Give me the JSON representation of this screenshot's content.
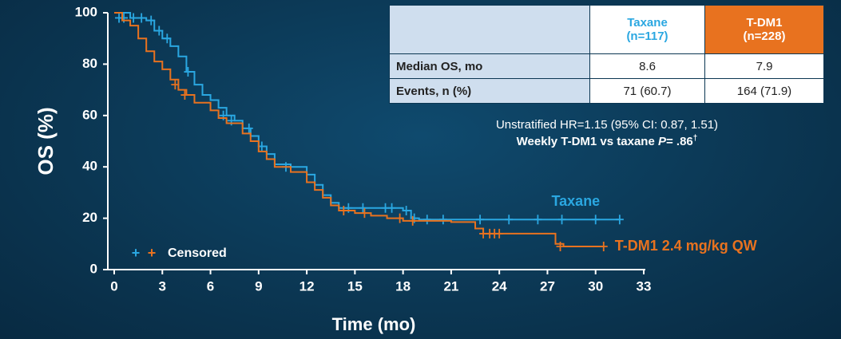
{
  "chart_data": {
    "type": "line",
    "step": true,
    "xlabel": "Time (mo)",
    "ylabel": "OS (%)",
    "xlim": [
      0,
      33
    ],
    "xticks": [
      0,
      3,
      6,
      9,
      12,
      15,
      18,
      21,
      24,
      27,
      30,
      33
    ],
    "ylim": [
      0,
      100
    ],
    "yticks": [
      0,
      20,
      40,
      60,
      80,
      100
    ],
    "series": [
      {
        "name": "Taxane",
        "color": "#2aa7e1",
        "x": [
          0,
          1,
          2,
          2.5,
          3,
          3.5,
          4,
          4.5,
          5,
          5.5,
          6,
          6.5,
          7,
          7.5,
          8,
          8.5,
          9,
          9.5,
          10,
          11,
          12,
          12.5,
          13,
          13.5,
          14,
          18,
          18.5,
          19,
          31.5
        ],
        "values": [
          100,
          98,
          97,
          93,
          90,
          87,
          83,
          77,
          72,
          68,
          66,
          63,
          60,
          58,
          55,
          52,
          48,
          45,
          41,
          40,
          37,
          33,
          29,
          26,
          24,
          23,
          20,
          19.5,
          19.5
        ],
        "censored_x": [
          0.3,
          0.6,
          1.2,
          1.7,
          2.3,
          2.8,
          3.3,
          4.6,
          6.8,
          7.3,
          8.4,
          9.2,
          10.7,
          14.6,
          15.5,
          16.9,
          17.3,
          18.2,
          18.7,
          19.5,
          20.5,
          22.8,
          24.6,
          26.4,
          27.9,
          30,
          31.5
        ],
        "censored_values": [
          98,
          98,
          98,
          98,
          97,
          93,
          90,
          77,
          60,
          58,
          55,
          48,
          40,
          24,
          24,
          24,
          24,
          23,
          20,
          19.5,
          19.5,
          19.5,
          19.5,
          19.5,
          19.5,
          19.5,
          19.5
        ]
      },
      {
        "name": "T-DM1 2.4 mg/kg QW",
        "color": "#e8721f",
        "x": [
          0,
          0.5,
          1,
          1.5,
          2,
          2.5,
          3,
          3.5,
          4,
          4.5,
          5,
          6,
          6.5,
          7,
          8,
          8.5,
          9,
          9.5,
          10,
          11,
          12,
          12.5,
          13,
          13.5,
          14,
          15,
          16,
          17,
          18,
          21,
          22.5,
          23,
          25,
          27.5,
          28,
          30.5
        ],
        "values": [
          100,
          97,
          95,
          90,
          85,
          81,
          78,
          74,
          70,
          68,
          65,
          62,
          59,
          57,
          53,
          50,
          46,
          43,
          40,
          38,
          34,
          31,
          28,
          25,
          23,
          22,
          21,
          20,
          19,
          18.5,
          16,
          14,
          14,
          10,
          9,
          9
        ],
        "censored_x": [
          3.8,
          4.4,
          14.3,
          15.6,
          17.8,
          18.6,
          23,
          23.4,
          23.7,
          24,
          27.8,
          30.5
        ],
        "censored_values": [
          72,
          68,
          23,
          22,
          20,
          19,
          14,
          14,
          14,
          14,
          9,
          9
        ]
      }
    ],
    "legend": {
      "marker": "+",
      "label": "Censored"
    },
    "table": {
      "header": [
        "",
        "Taxane\n(n=117)",
        "T-DM1\n(n=228)"
      ],
      "rows": [
        [
          "Median OS, mo",
          "8.6",
          "7.9"
        ],
        [
          "Events, n (%)",
          "71 (60.7)",
          "164 (71.9)"
        ]
      ]
    },
    "annotations": [
      "Unstratified HR=1.15 (95% CI: 0.87, 1.51)",
      "Weekly T-DM1 vs taxane ",
      "P",
      "= .86",
      "†"
    ]
  }
}
